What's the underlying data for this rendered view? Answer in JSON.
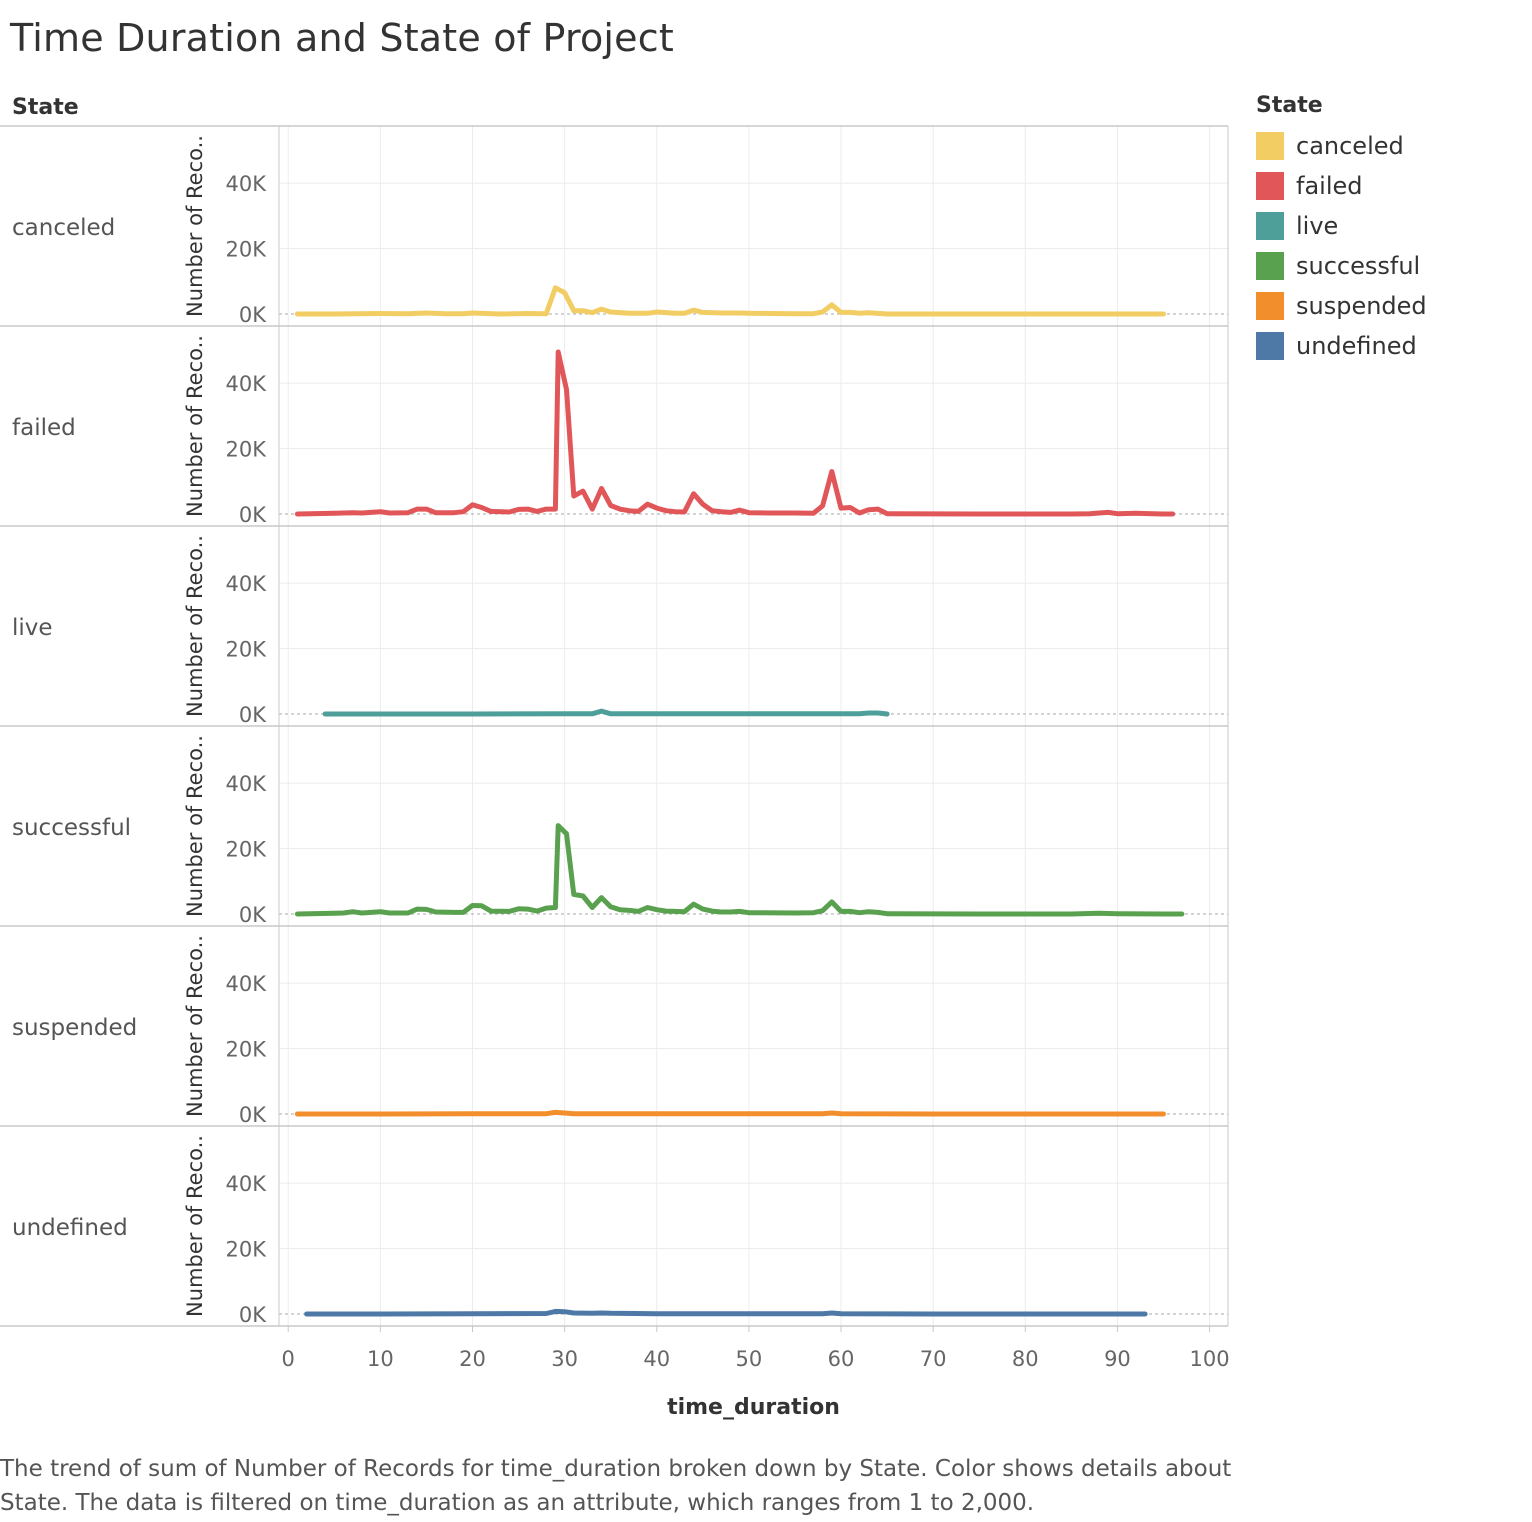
{
  "title": "Time Duration and State of Project",
  "facet_header": "State",
  "legend": {
    "title": "State",
    "items": [
      {
        "label": "canceled",
        "color": "#f1cd63"
      },
      {
        "label": "failed",
        "color": "#e15759"
      },
      {
        "label": "live",
        "color": "#4e9f99"
      },
      {
        "label": "successful",
        "color": "#59a14f"
      },
      {
        "label": "suspended",
        "color": "#f28e2b"
      },
      {
        "label": "undefined",
        "color": "#4e79a7"
      }
    ]
  },
  "caption": "The trend of sum of Number of Records for time_duration broken down by State.  Color shows details about State. The data is filtered on time_duration as an attribute, which ranges from 1 to 2,000.",
  "chart_data": {
    "type": "line",
    "xlabel": "time_duration",
    "ylabel": "Number of Reco..",
    "xlim": [
      -1,
      102
    ],
    "ylim": [
      0,
      55000
    ],
    "x_ticks": [
      "0",
      "10",
      "20",
      "30",
      "40",
      "50",
      "60",
      "70",
      "80",
      "90",
      "100"
    ],
    "y_ticks": [
      "0K",
      "20K",
      "40K"
    ],
    "grid": true,
    "legend_position": "right",
    "series": [
      {
        "name": "canceled",
        "color": "#f1cd63",
        "points": [
          [
            1,
            0
          ],
          [
            5,
            0
          ],
          [
            10,
            150
          ],
          [
            13,
            100
          ],
          [
            15,
            300
          ],
          [
            17,
            50
          ],
          [
            19,
            100
          ],
          [
            20,
            300
          ],
          [
            23,
            0
          ],
          [
            26,
            150
          ],
          [
            28,
            100
          ],
          [
            29,
            8000
          ],
          [
            30,
            6500
          ],
          [
            31,
            1000
          ],
          [
            32,
            1000
          ],
          [
            33,
            400
          ],
          [
            34,
            1500
          ],
          [
            35,
            600
          ],
          [
            37,
            200
          ],
          [
            39,
            200
          ],
          [
            40,
            600
          ],
          [
            42,
            200
          ],
          [
            43,
            200
          ],
          [
            44,
            1200
          ],
          [
            45,
            500
          ],
          [
            47,
            300
          ],
          [
            49,
            300
          ],
          [
            50,
            200
          ],
          [
            55,
            100
          ],
          [
            57,
            100
          ],
          [
            58,
            600
          ],
          [
            59,
            2800
          ],
          [
            60,
            500
          ],
          [
            61,
            500
          ],
          [
            62,
            200
          ],
          [
            63,
            400
          ],
          [
            65,
            0
          ],
          [
            75,
            0
          ],
          [
            85,
            0
          ],
          [
            95,
            0
          ]
        ]
      },
      {
        "name": "failed",
        "color": "#e15759",
        "points": [
          [
            1,
            0
          ],
          [
            5,
            200
          ],
          [
            7,
            400
          ],
          [
            8,
            300
          ],
          [
            10,
            700
          ],
          [
            11,
            300
          ],
          [
            13,
            400
          ],
          [
            14,
            1500
          ],
          [
            15,
            1500
          ],
          [
            16,
            400
          ],
          [
            18,
            400
          ],
          [
            19,
            700
          ],
          [
            20,
            2800
          ],
          [
            21,
            2000
          ],
          [
            22,
            800
          ],
          [
            24,
            600
          ],
          [
            25,
            1400
          ],
          [
            26,
            1500
          ],
          [
            27,
            800
          ],
          [
            28,
            1500
          ],
          [
            29,
            1500
          ],
          [
            29.3,
            49500
          ],
          [
            30.2,
            38000
          ],
          [
            31,
            5500
          ],
          [
            32,
            7000
          ],
          [
            33,
            1500
          ],
          [
            34,
            7800
          ],
          [
            35,
            2600
          ],
          [
            36,
            1500
          ],
          [
            37,
            1000
          ],
          [
            38,
            800
          ],
          [
            39,
            3000
          ],
          [
            40,
            1800
          ],
          [
            41,
            1000
          ],
          [
            42,
            700
          ],
          [
            43,
            600
          ],
          [
            44,
            6200
          ],
          [
            45,
            3000
          ],
          [
            46,
            1000
          ],
          [
            47,
            700
          ],
          [
            48,
            500
          ],
          [
            49,
            1200
          ],
          [
            50,
            400
          ],
          [
            52,
            300
          ],
          [
            55,
            300
          ],
          [
            57,
            200
          ],
          [
            58,
            2500
          ],
          [
            59,
            13000
          ],
          [
            60,
            1800
          ],
          [
            61,
            2000
          ],
          [
            62,
            300
          ],
          [
            63,
            1300
          ],
          [
            64,
            1500
          ],
          [
            65,
            100
          ],
          [
            75,
            0
          ],
          [
            85,
            0
          ],
          [
            87,
            100
          ],
          [
            88,
            300
          ],
          [
            89,
            500
          ],
          [
            90,
            100
          ],
          [
            92,
            200
          ],
          [
            95,
            0
          ],
          [
            96,
            0
          ]
        ]
      },
      {
        "name": "live",
        "color": "#4e9f99",
        "points": [
          [
            4,
            0
          ],
          [
            10,
            0
          ],
          [
            20,
            0
          ],
          [
            30,
            50
          ],
          [
            33,
            50
          ],
          [
            34,
            900
          ],
          [
            35,
            50
          ],
          [
            40,
            50
          ],
          [
            45,
            50
          ],
          [
            49,
            100
          ],
          [
            50,
            50
          ],
          [
            55,
            50
          ],
          [
            60,
            50
          ],
          [
            62,
            50
          ],
          [
            63,
            300
          ],
          [
            64,
            300
          ],
          [
            65,
            0
          ]
        ]
      },
      {
        "name": "successful",
        "color": "#59a14f",
        "points": [
          [
            1,
            0
          ],
          [
            5,
            200
          ],
          [
            6,
            300
          ],
          [
            7,
            700
          ],
          [
            8,
            300
          ],
          [
            10,
            700
          ],
          [
            11,
            300
          ],
          [
            13,
            300
          ],
          [
            14,
            1500
          ],
          [
            15,
            1400
          ],
          [
            16,
            600
          ],
          [
            18,
            500
          ],
          [
            19,
            500
          ],
          [
            20,
            2600
          ],
          [
            21,
            2500
          ],
          [
            22,
            900
          ],
          [
            24,
            800
          ],
          [
            25,
            1600
          ],
          [
            26,
            1500
          ],
          [
            27,
            900
          ],
          [
            28,
            1800
          ],
          [
            29,
            2000
          ],
          [
            29.3,
            27000
          ],
          [
            30.2,
            24500
          ],
          [
            31,
            6000
          ],
          [
            32,
            5500
          ],
          [
            33,
            2000
          ],
          [
            34,
            5000
          ],
          [
            35,
            2200
          ],
          [
            36,
            1300
          ],
          [
            37,
            1100
          ],
          [
            38,
            800
          ],
          [
            39,
            2000
          ],
          [
            40,
            1300
          ],
          [
            41,
            900
          ],
          [
            42,
            800
          ],
          [
            43,
            700
          ],
          [
            44,
            3000
          ],
          [
            45,
            1500
          ],
          [
            46,
            900
          ],
          [
            47,
            600
          ],
          [
            48,
            600
          ],
          [
            49,
            800
          ],
          [
            50,
            400
          ],
          [
            55,
            300
          ],
          [
            57,
            400
          ],
          [
            58,
            1000
          ],
          [
            59,
            3700
          ],
          [
            60,
            800
          ],
          [
            61,
            800
          ],
          [
            62,
            400
          ],
          [
            63,
            700
          ],
          [
            64,
            500
          ],
          [
            65,
            100
          ],
          [
            75,
            0
          ],
          [
            85,
            0
          ],
          [
            88,
            200
          ],
          [
            90,
            100
          ],
          [
            95,
            0
          ],
          [
            97,
            0
          ]
        ]
      },
      {
        "name": "suspended",
        "color": "#f28e2b",
        "points": [
          [
            1,
            0
          ],
          [
            10,
            0
          ],
          [
            20,
            50
          ],
          [
            28,
            100
          ],
          [
            29,
            500
          ],
          [
            30,
            300
          ],
          [
            31,
            100
          ],
          [
            35,
            100
          ],
          [
            40,
            50
          ],
          [
            50,
            50
          ],
          [
            58,
            50
          ],
          [
            59,
            300
          ],
          [
            60,
            50
          ],
          [
            70,
            0
          ],
          [
            80,
            0
          ],
          [
            90,
            0
          ],
          [
            95,
            0
          ]
        ]
      },
      {
        "name": "undefined",
        "color": "#4e79a7",
        "points": [
          [
            2,
            0
          ],
          [
            10,
            0
          ],
          [
            20,
            100
          ],
          [
            28,
            150
          ],
          [
            29,
            800
          ],
          [
            30,
            700
          ],
          [
            31,
            300
          ],
          [
            33,
            200
          ],
          [
            34,
            300
          ],
          [
            35,
            200
          ],
          [
            40,
            100
          ],
          [
            50,
            100
          ],
          [
            58,
            100
          ],
          [
            59,
            300
          ],
          [
            60,
            100
          ],
          [
            70,
            0
          ],
          [
            80,
            0
          ],
          [
            93,
            0
          ]
        ]
      }
    ]
  }
}
